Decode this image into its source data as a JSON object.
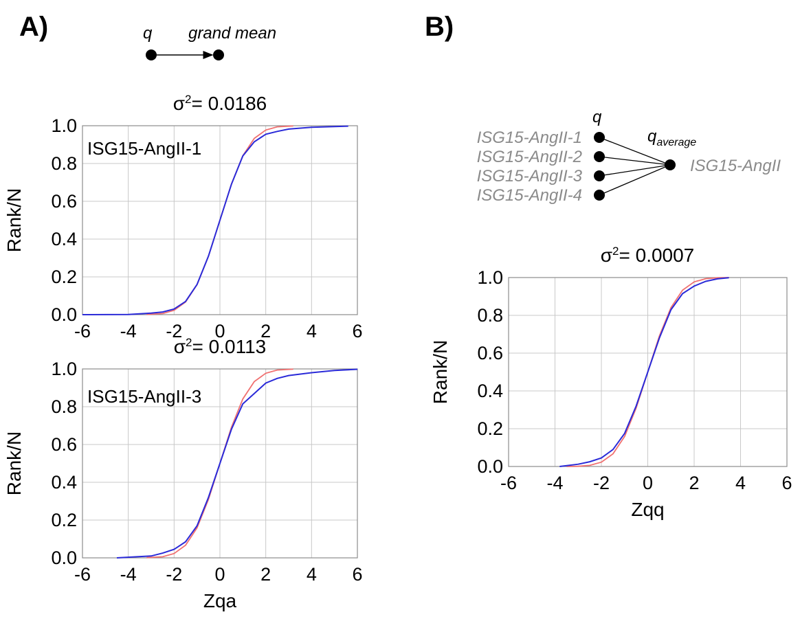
{
  "panels": {
    "A": {
      "label": "A)",
      "schematic": {
        "q": "q",
        "target": "grand mean"
      }
    },
    "B": {
      "label": "B)",
      "schematic": {
        "q": "q",
        "q_main": "q",
        "q_sub": "average",
        "inputs": [
          "ISG15-AngII-1",
          "ISG15-AngII-2",
          "ISG15-AngII-3",
          "ISG15-AngII-4"
        ],
        "output": "ISG15-AngII"
      }
    }
  },
  "colors": {
    "theoretical": "#f07070",
    "empirical": "#2a2ad8",
    "grid": "#c8c8c8"
  },
  "chart_data": [
    {
      "type": "line",
      "panel": "A",
      "sigma_prefix": "σ",
      "sigma_sup": "2",
      "sigma_value": "= 0.0186",
      "inset_label": "ISG15-AngII-1",
      "xlabel": "",
      "ylabel": "Rank/N",
      "xlim": [
        -6,
        6
      ],
      "ylim": [
        0,
        1
      ],
      "xticks": [
        "-6",
        "-4",
        "-2",
        "0",
        "2",
        "4",
        "6"
      ],
      "yticks": [
        "0.0",
        "0.2",
        "0.4",
        "0.6",
        "0.8",
        "1.0"
      ],
      "grid": true,
      "series": [
        {
          "kind": "theoretical",
          "x": [
            -3.2,
            -2.5,
            -2,
            -1.5,
            -1,
            -0.5,
            0,
            0.5,
            1,
            1.5,
            2,
            2.5,
            3.2
          ],
          "y": [
            0.001,
            0.006,
            0.023,
            0.067,
            0.159,
            0.309,
            0.5,
            0.691,
            0.841,
            0.933,
            0.977,
            0.994,
            0.999
          ]
        },
        {
          "kind": "empirical",
          "x": [
            -6,
            -4,
            -3,
            -2.5,
            -2,
            -1.5,
            -1,
            -0.5,
            0,
            0.5,
            1,
            1.5,
            2,
            2.5,
            3,
            4,
            5.6
          ],
          "y": [
            0.0,
            0.001,
            0.008,
            0.014,
            0.03,
            0.07,
            0.16,
            0.31,
            0.5,
            0.69,
            0.84,
            0.915,
            0.955,
            0.97,
            0.982,
            0.992,
            0.998
          ]
        }
      ]
    },
    {
      "type": "line",
      "panel": "A",
      "sigma_prefix": "σ",
      "sigma_sup": "2",
      "sigma_value": "= 0.0113",
      "inset_label": "ISG15-AngII-3",
      "xlabel": "Zqa",
      "ylabel": "Rank/N",
      "xlim": [
        -6,
        6
      ],
      "ylim": [
        0,
        1
      ],
      "xticks": [
        "-6",
        "-4",
        "-2",
        "0",
        "2",
        "4",
        "6"
      ],
      "yticks": [
        "0.0",
        "0.2",
        "0.4",
        "0.6",
        "0.8",
        "1.0"
      ],
      "grid": true,
      "series": [
        {
          "kind": "theoretical",
          "x": [
            -3.2,
            -2.5,
            -2,
            -1.5,
            -1,
            -0.5,
            0,
            0.5,
            1,
            1.5,
            2,
            2.5,
            3.2
          ],
          "y": [
            0.001,
            0.006,
            0.023,
            0.067,
            0.159,
            0.309,
            0.5,
            0.691,
            0.841,
            0.933,
            0.977,
            0.994,
            0.999
          ]
        },
        {
          "kind": "empirical",
          "x": [
            -4.5,
            -3,
            -2.5,
            -2,
            -1.5,
            -1,
            -0.5,
            0,
            0.5,
            1,
            1.5,
            2,
            2.5,
            3,
            4,
            5,
            6
          ],
          "y": [
            0.0,
            0.01,
            0.025,
            0.045,
            0.085,
            0.17,
            0.32,
            0.5,
            0.68,
            0.815,
            0.87,
            0.925,
            0.95,
            0.965,
            0.98,
            0.992,
            0.998
          ]
        }
      ]
    },
    {
      "type": "line",
      "panel": "B",
      "sigma_prefix": "σ",
      "sigma_sup": "2",
      "sigma_value": "= 0.0007",
      "inset_label": "",
      "xlabel": "Zqq",
      "ylabel": "Rank/N",
      "xlim": [
        -6,
        6
      ],
      "ylim": [
        0,
        1
      ],
      "xticks": [
        "-6",
        "-4",
        "-2",
        "0",
        "2",
        "4",
        "6"
      ],
      "yticks": [
        "0.0",
        "0.2",
        "0.4",
        "0.6",
        "0.8",
        "1.0"
      ],
      "grid": true,
      "series": [
        {
          "kind": "theoretical",
          "x": [
            -3.5,
            -3,
            -2.5,
            -2,
            -1.5,
            -1,
            -0.5,
            0,
            0.5,
            1,
            1.5,
            2,
            2.5,
            3,
            3.5
          ],
          "y": [
            0.0,
            0.001,
            0.006,
            0.023,
            0.067,
            0.159,
            0.309,
            0.5,
            0.691,
            0.841,
            0.933,
            0.977,
            0.994,
            0.999,
            1.0
          ]
        },
        {
          "kind": "empirical",
          "x": [
            -3.8,
            -3,
            -2.5,
            -2,
            -1.5,
            -1,
            -0.5,
            0,
            0.5,
            1,
            1.5,
            2,
            2.5,
            3,
            3.5
          ],
          "y": [
            0.0,
            0.012,
            0.025,
            0.045,
            0.09,
            0.175,
            0.32,
            0.5,
            0.68,
            0.83,
            0.915,
            0.955,
            0.98,
            0.993,
            0.999
          ]
        }
      ]
    }
  ]
}
